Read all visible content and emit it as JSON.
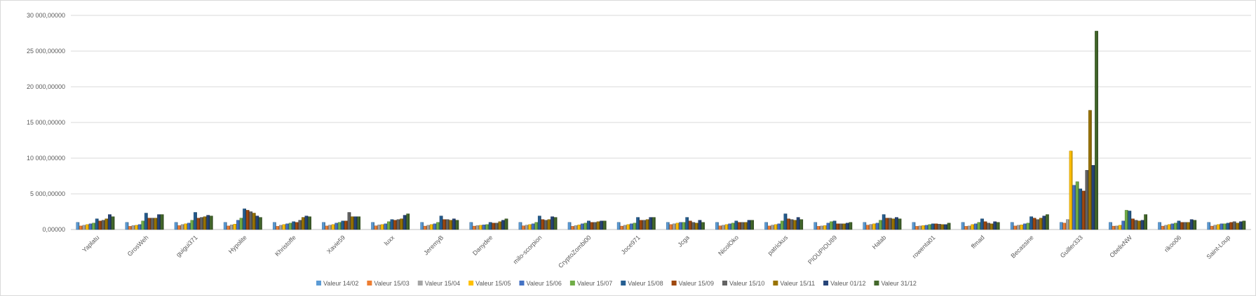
{
  "chart_data": {
    "type": "bar",
    "title": "",
    "xlabel": "",
    "ylabel": "",
    "ylim": [
      0,
      30000
    ],
    "yticks": [
      0,
      5000,
      10000,
      15000,
      20000,
      25000,
      30000
    ],
    "ytick_labels": [
      "0,00000",
      "5 000,00000",
      "10 000,00000",
      "15 000,00000",
      "20 000,00000",
      "25 000,00000",
      "30 000,00000"
    ],
    "grid": true,
    "legend_position": "bottom",
    "categories": [
      "Yaplatu",
      "GrosWeh",
      "guigui371",
      "Hypolite",
      "Khristoffe",
      "Xavie59",
      "luxx",
      "JeremyB",
      "Danydee",
      "milo-scorpion",
      "CryptoZombi00",
      "Joce971",
      "Jcga",
      "NicolOko",
      "patrickus",
      "PIOUPIOU89",
      "Halab",
      "rowenta01",
      "ffmad",
      "Becassine",
      "Guiller333",
      "ObelixNW",
      "rikoo06",
      "Saint-Loup"
    ],
    "series": [
      {
        "name": "Valeur 14/02",
        "color": "#5b9bd5",
        "values": [
          1000,
          1000,
          1000,
          1000,
          1000,
          1000,
          1000,
          1000,
          1000,
          1000,
          1000,
          1000,
          1000,
          1000,
          1000,
          1000,
          1000,
          1000,
          1000,
          1000,
          1000,
          1000,
          1000,
          1000
        ]
      },
      {
        "name": "Valeur 15/03",
        "color": "#ed7d31",
        "values": [
          500,
          450,
          550,
          500,
          450,
          500,
          520,
          480,
          480,
          520,
          450,
          480,
          700,
          520,
          500,
          450,
          620,
          450,
          450,
          500,
          900,
          480,
          480,
          480
        ]
      },
      {
        "name": "Valeur 15/04",
        "color": "#a5a5a5",
        "values": [
          600,
          550,
          700,
          650,
          600,
          620,
          650,
          600,
          550,
          620,
          550,
          600,
          800,
          600,
          620,
          500,
          720,
          500,
          500,
          600,
          1400,
          500,
          600,
          620
        ]
      },
      {
        "name": "Valeur 15/05",
        "color": "#ffc000",
        "values": [
          700,
          600,
          800,
          750,
          700,
          700,
          700,
          700,
          600,
          700,
          650,
          700,
          900,
          700,
          700,
          550,
          800,
          550,
          700,
          650,
          11000,
          600,
          700,
          700
        ]
      },
      {
        "name": "Valeur 15/06",
        "color": "#4472c4",
        "values": [
          800,
          700,
          900,
          1300,
          800,
          900,
          800,
          800,
          650,
          800,
          800,
          800,
          1000,
          800,
          800,
          900,
          900,
          600,
          800,
          800,
          6200,
          1200,
          800,
          800
        ]
      },
      {
        "name": "Valeur 15/07",
        "color": "#70ad47",
        "values": [
          900,
          1200,
          1300,
          1600,
          900,
          1000,
          1100,
          1000,
          700,
          1000,
          900,
          900,
          1000,
          900,
          1200,
          1100,
          1300,
          700,
          1000,
          900,
          6700,
          2700,
          900,
          800
        ]
      },
      {
        "name": "Valeur 15/08",
        "color": "#255e91",
        "values": [
          1500,
          2300,
          2400,
          2900,
          1100,
          1200,
          1400,
          1900,
          1000,
          1900,
          1200,
          1700,
          1700,
          1200,
          2200,
          1200,
          2100,
          800,
          1500,
          1800,
          5700,
          2600,
          1200,
          900
        ]
      },
      {
        "name": "Valeur 15/09",
        "color": "#9e480e",
        "values": [
          1200,
          1600,
          1600,
          2700,
          1000,
          1200,
          1300,
          1400,
          900,
          1400,
          1000,
          1300,
          1200,
          1000,
          1500,
          800,
          1600,
          800,
          1100,
          1600,
          5400,
          1500,
          1000,
          1000
        ]
      },
      {
        "name": "Valeur 15/10",
        "color": "#636363",
        "values": [
          1300,
          1600,
          1700,
          2500,
          1300,
          2400,
          1400,
          1400,
          900,
          1300,
          1000,
          1300,
          1000,
          1000,
          1400,
          800,
          1600,
          750,
          900,
          1400,
          8300,
          1300,
          1000,
          1100
        ]
      },
      {
        "name": "Valeur 15/11",
        "color": "#997300",
        "values": [
          1500,
          1600,
          1800,
          2300,
          1700,
          1800,
          1500,
          1300,
          1100,
          1400,
          1100,
          1400,
          900,
          1000,
          1300,
          800,
          1500,
          700,
          800,
          1600,
          16700,
          1200,
          1000,
          900
        ]
      },
      {
        "name": "Valeur 01/12",
        "color": "#264478",
        "values": [
          2100,
          2100,
          2000,
          1900,
          1900,
          1800,
          2000,
          1500,
          1300,
          1800,
          1200,
          1700,
          1300,
          1300,
          1700,
          900,
          1700,
          700,
          1100,
          1900,
          9000,
          1300,
          1400,
          1100
        ]
      },
      {
        "name": "Valeur 31/12",
        "color": "#43682b",
        "values": [
          1800,
          2100,
          1900,
          1700,
          1800,
          1800,
          2200,
          1300,
          1500,
          1700,
          1200,
          1700,
          1000,
          1300,
          1400,
          1000,
          1500,
          900,
          1000,
          2100,
          27800,
          2100,
          1300,
          1200
        ]
      }
    ]
  }
}
